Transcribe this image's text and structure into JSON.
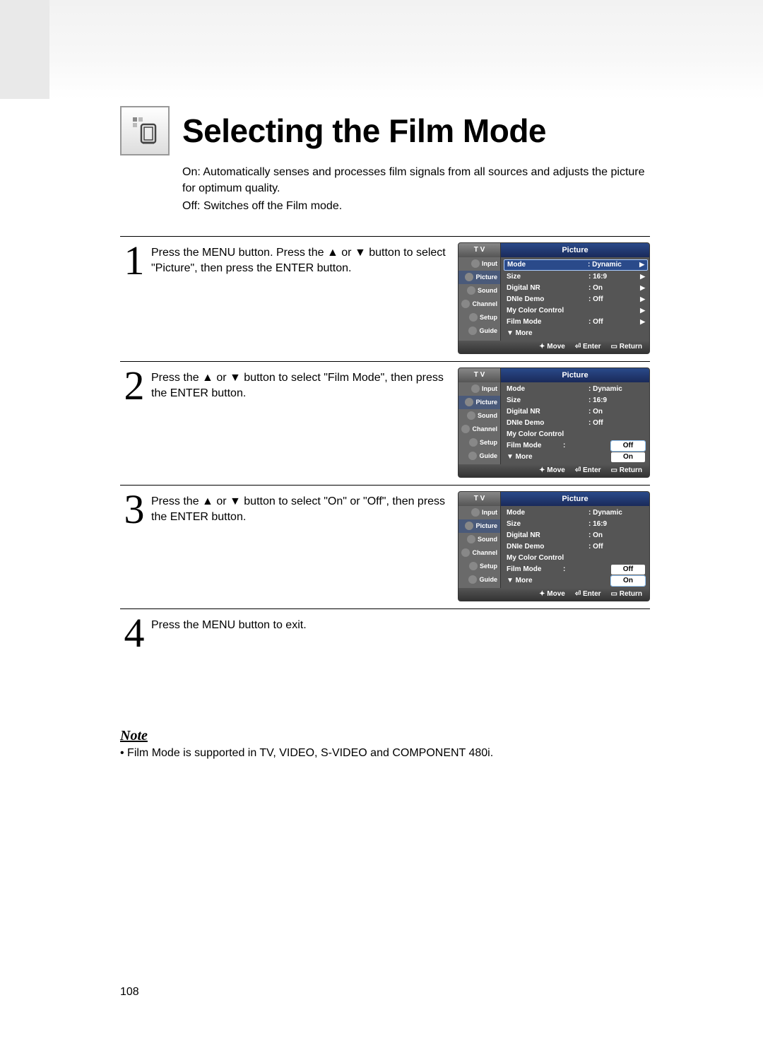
{
  "page_number": "108",
  "title": "Selecting the Film Mode",
  "intro": {
    "line1": "On: Automatically senses and processes film signals from all sources and adjusts the picture for optimum quality.",
    "line2": "Off: Switches off the Film mode."
  },
  "steps": [
    {
      "num": "1",
      "text": "Press the MENU button. Press the ▲ or ▼ button to select \"Picture\", then press the ENTER button.",
      "osd": {
        "tv": "T V",
        "section": "Picture",
        "sidebar": [
          "Input",
          "Picture",
          "Sound",
          "Channel",
          "Setup",
          "Guide"
        ],
        "active_side": 1,
        "rows": [
          {
            "label": "Mode",
            "val": ": Dynamic",
            "selected": true,
            "caret": true
          },
          {
            "label": "Size",
            "val": ": 16:9",
            "caret": true
          },
          {
            "label": "Digital NR",
            "val": ": On",
            "caret": true
          },
          {
            "label": "DNIe Demo",
            "val": ": Off",
            "caret": true
          },
          {
            "label": "My Color Control",
            "val": "",
            "caret": true
          },
          {
            "label": "Film Mode",
            "val": ": Off",
            "caret": true
          },
          {
            "label": "▼ More",
            "val": ""
          }
        ],
        "footer": {
          "move": "Move",
          "enter": "Enter",
          "return": "Return"
        }
      }
    },
    {
      "num": "2",
      "text": "Press the ▲ or ▼ button to select \"Film Mode\", then press the ENTER button.",
      "osd": {
        "tv": "T V",
        "section": "Picture",
        "sidebar": [
          "Input",
          "Picture",
          "Sound",
          "Channel",
          "Setup",
          "Guide"
        ],
        "active_side": 1,
        "rows": [
          {
            "label": "Mode",
            "val": ": Dynamic"
          },
          {
            "label": "Size",
            "val": ": 16:9"
          },
          {
            "label": "Digital NR",
            "val": ": On"
          },
          {
            "label": "DNIe Demo",
            "val": ": Off"
          },
          {
            "label": "My Color Control",
            "val": ""
          },
          {
            "label": "Film Mode",
            "val": ":",
            "box": "Off",
            "box_sel": true
          },
          {
            "label": "▼ More",
            "val": "",
            "box": "On"
          }
        ],
        "footer": {
          "move": "Move",
          "enter": "Enter",
          "return": "Return"
        }
      }
    },
    {
      "num": "3",
      "text": "Press the ▲ or ▼ button to select \"On\" or \"Off\", then press the ENTER button.",
      "osd": {
        "tv": "T V",
        "section": "Picture",
        "sidebar": [
          "Input",
          "Picture",
          "Sound",
          "Channel",
          "Setup",
          "Guide"
        ],
        "active_side": 1,
        "rows": [
          {
            "label": "Mode",
            "val": ": Dynamic"
          },
          {
            "label": "Size",
            "val": ": 16:9"
          },
          {
            "label": "Digital NR",
            "val": ": On"
          },
          {
            "label": "DNIe Demo",
            "val": ": Off"
          },
          {
            "label": "My Color Control",
            "val": ""
          },
          {
            "label": "Film Mode",
            "val": ":",
            "box": "Off"
          },
          {
            "label": "▼ More",
            "val": "",
            "box": "On",
            "box_sel": true
          }
        ],
        "footer": {
          "move": "Move",
          "enter": "Enter",
          "return": "Return"
        }
      }
    },
    {
      "num": "4",
      "text": "Press the MENU button to exit."
    }
  ],
  "note": {
    "title": "Note",
    "body": "Film Mode is supported in TV, VIDEO, S-VIDEO and COMPONENT 480i."
  }
}
